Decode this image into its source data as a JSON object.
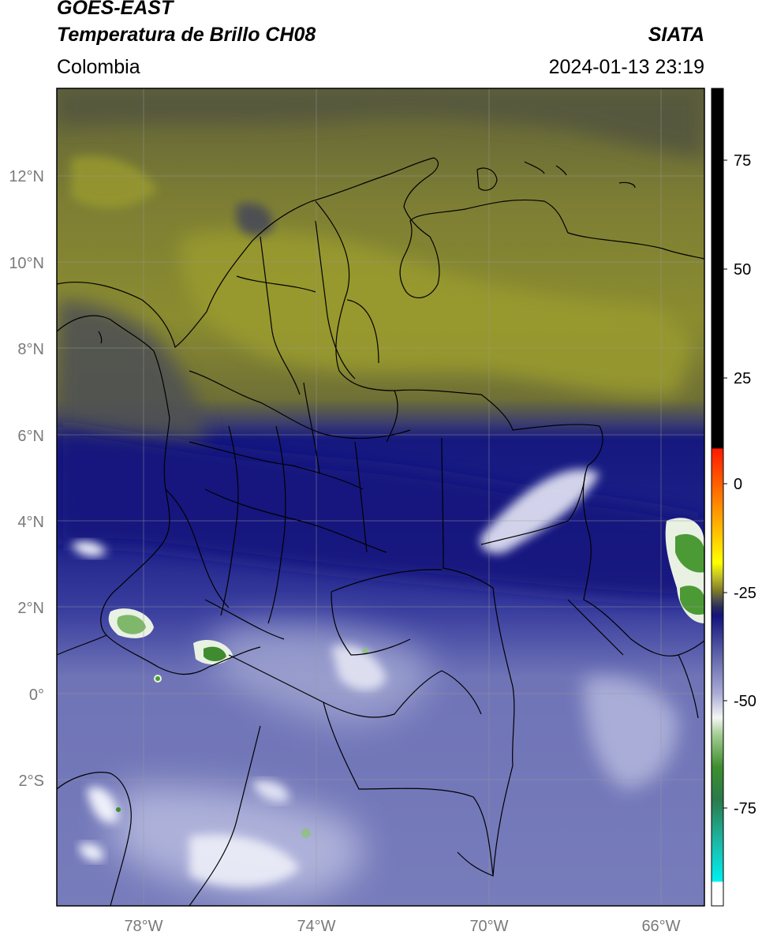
{
  "header": {
    "satellite": "GOES-EAST",
    "product": "Temperatura de Brillo CH08",
    "brand": "SIATA",
    "region": "Colombia",
    "timestamp": "2024-01-13 23:19"
  },
  "axes": {
    "lat_labels": [
      "12°N",
      "10°N",
      "8°N",
      "6°N",
      "4°N",
      "2°N",
      "0°",
      "2°S"
    ],
    "lon_labels": [
      "78°W",
      "74°W",
      "70°W",
      "66°W"
    ]
  },
  "colorbar": {
    "ticks": [
      "75",
      "50",
      "25",
      "0",
      "-25",
      "-50",
      "-75"
    ],
    "colors": {
      "black": "#000000",
      "red": "#ff2a00",
      "orange": "#ff9900",
      "yellow": "#ffff00",
      "olive": "#7c7a25",
      "gray": "#4f5050",
      "navy": "#13137e",
      "lavender": "#a9abd6",
      "white": "#f4f6f4",
      "green": "#3f8e2e",
      "teal": "#1cb7a3",
      "cyan": "#00f0f0"
    }
  },
  "map_colors": {
    "olive": "#686a33",
    "olive_bright": "#9b9c2f",
    "gray": "#4e5052",
    "navy": "#151885",
    "blue_mid": "#4a4fa6",
    "lavender": "#a6a9d4",
    "cloud_white": "#f2f3fb",
    "storm_green": "#3f8c30"
  }
}
